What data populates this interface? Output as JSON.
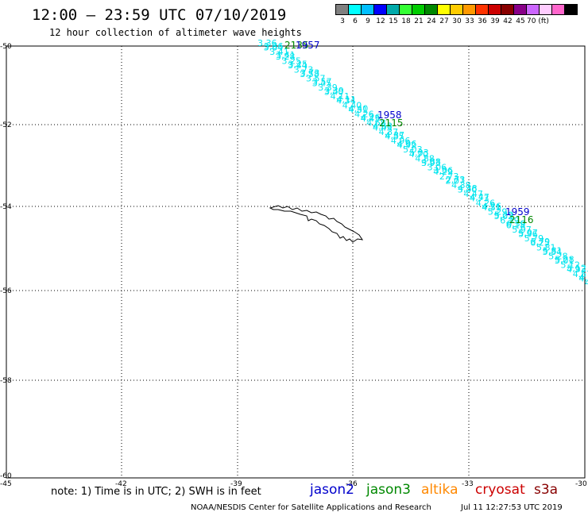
{
  "title": "12:00 – 23:59 UTC 07/10/2019",
  "subtitle": "12 hour collection of altimeter wave heights",
  "colorbar": {
    "colors": [
      "#808080",
      "#00ffff",
      "#00bfff",
      "#0000ff",
      "#00aaaa",
      "#33ff33",
      "#00cc00",
      "#008800",
      "#ffff00",
      "#ffcc00",
      "#ff9900",
      "#ff3300",
      "#cc0000",
      "#880000",
      "#880088",
      "#cc66ff",
      "#ffccff",
      "#ff66cc",
      "#000000"
    ],
    "labels": [
      "3",
      "6",
      "9",
      "12",
      "15",
      "18",
      "21",
      "24",
      "27",
      "30",
      "33",
      "36",
      "39",
      "42",
      "45",
      "70 (ft)"
    ]
  },
  "axes": {
    "lat_labels": [
      "-50",
      "-52",
      "-54",
      "-56",
      "-58",
      "-60"
    ],
    "lon_labels": [
      "-45",
      "-42",
      "-39",
      "-36",
      "-33",
      "-30"
    ]
  },
  "track": {
    "color": "#00e5ee",
    "values": [
      "3.36",
      "3.64",
      "3.41",
      "3.28",
      "3.25",
      "3.44",
      "3.73",
      "3.58",
      "3.57",
      "3.45",
      "3.39",
      "3.40",
      "4.11",
      "4.34",
      "4.40",
      "4.31",
      "4.26",
      "4.43",
      "4.68",
      "4.43",
      "4.37",
      "4.85",
      "4.96",
      "4.92",
      "5.03",
      "4.70",
      "4.88",
      "3.93",
      "3.06",
      "4.29",
      "2.73",
      "2.07",
      "4.38",
      "3.40",
      "4.47",
      "4.73",
      "4.26",
      "4.51",
      "5.29",
      "5.02",
      "6.39",
      "6.18",
      "5.97",
      "5.96",
      "5.79",
      "6.25",
      "5.81",
      "5.34",
      "5.28",
      "5.01",
      "5.12",
      "4.93",
      "4.57",
      "4.30",
      "4.69"
    ]
  },
  "time_labels": [
    {
      "text": "2135",
      "color": "#008800"
    },
    {
      "text": "1957",
      "color": "#0000cc"
    },
    {
      "text": "1958",
      "color": "#0000cc"
    },
    {
      "text": "2115",
      "color": "#008800"
    },
    {
      "text": "1959",
      "color": "#0000cc"
    },
    {
      "text": "2116",
      "color": "#008800"
    }
  ],
  "note": "note:  1) Time is in UTC;  2) SWH is in feet",
  "satellites": [
    {
      "name": "jason2",
      "color": "#0000cc"
    },
    {
      "name": "jason3",
      "color": "#008800"
    },
    {
      "name": "altika",
      "color": "#ff8800"
    },
    {
      "name": "cryosat",
      "color": "#cc0000"
    },
    {
      "name": "s3a",
      "color": "#880000"
    }
  ],
  "footer": "NOAA/NESDIS Center for Satellite Applications and Research",
  "footer_time": "Jul 11 12:27:53 UTC 2019"
}
